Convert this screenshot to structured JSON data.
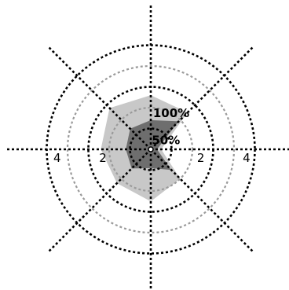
{
  "chart_data": {
    "type": "radar",
    "grid": true,
    "radial_axis": {
      "range": [
        0,
        5
      ],
      "dark_rings": [
        1,
        3,
        5
      ],
      "light_rings": [
        2,
        4
      ]
    },
    "spoke_angles_deg": [
      0,
      45,
      90,
      135,
      180,
      225,
      270,
      315
    ],
    "series": [
      {
        "color": "#c8c8c8",
        "values": [
          0.5,
          2.5,
          2.6,
          2.8,
          2.4,
          2.3,
          2.5,
          2.0
        ]
      },
      {
        "color": "#6e6e6e",
        "values": [
          0.3,
          1.9,
          1.4,
          1.4,
          1.2,
          1.3,
          0.9,
          1.4
        ]
      }
    ],
    "tick_labels": [
      {
        "text": "4",
        "angle_deg": 180,
        "radius": 4.5
      },
      {
        "text": "2",
        "angle_deg": 180,
        "radius": 2.3
      },
      {
        "text": "2",
        "angle_deg": 0,
        "radius": 2.4
      },
      {
        "text": "4",
        "angle_deg": 0,
        "radius": 4.6
      }
    ],
    "annotations": [
      {
        "text": "100%",
        "angle_deg": 86,
        "radius": 1.55
      },
      {
        "text": "50%",
        "angle_deg": 78,
        "radius": 0.25
      }
    ]
  }
}
